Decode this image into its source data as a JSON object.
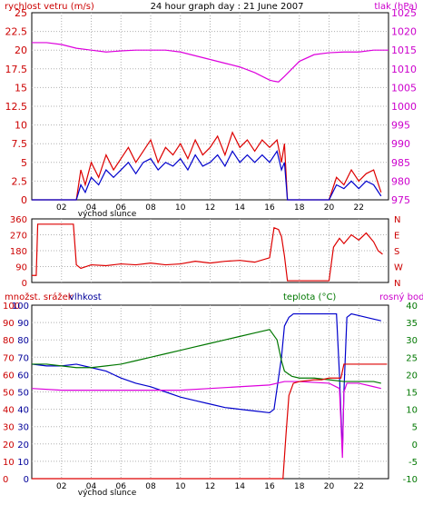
{
  "chart_data": [
    {
      "type": "line",
      "title": "24 hour graph day : 21 June 2007",
      "ylabel_left": "rychlost vetru (m/s)",
      "ylabel_right": "tlak (hPa)",
      "xlabel": "východ slunce",
      "x_ticks": [
        "02",
        "04",
        "06",
        "08",
        "10",
        "12",
        "14",
        "16",
        "18",
        "20",
        "22"
      ],
      "y_left_ticks": [
        "0",
        "2.5",
        "5",
        "7.5",
        "10",
        "12.5",
        "15",
        "17.5",
        "20",
        "22.5",
        "25"
      ],
      "y_right_ticks": [
        "975",
        "980",
        "985",
        "990",
        "995",
        "1000",
        "1005",
        "1010",
        "1015",
        "1020",
        "1025"
      ],
      "xlim": [
        0,
        24
      ],
      "ylim_left": [
        0,
        25
      ],
      "ylim_right": [
        975,
        1025
      ],
      "series": [
        {
          "name": "tlak (hPa)",
          "axis": "right",
          "color": "#dd00dd",
          "x": [
            0,
            1,
            2,
            3,
            4,
            5,
            6,
            7,
            8,
            9,
            10,
            11,
            12,
            13,
            14,
            15,
            15.5,
            16,
            16.3,
            16.6,
            17,
            17.5,
            18,
            19,
            20,
            21,
            22,
            23,
            24
          ],
          "y": [
            1017,
            1017,
            1016.5,
            1015.5,
            1015,
            1014.5,
            1014.8,
            1015,
            1015,
            1015,
            1014.5,
            1013.5,
            1012.5,
            1011.5,
            1010.5,
            1009,
            1008,
            1007,
            1006.7,
            1006.5,
            1008,
            1010,
            1012,
            1013.8,
            1014.3,
            1014.5,
            1014.5,
            1015,
            1015
          ]
        },
        {
          "name": "",
          "axis": "left",
          "color": "#dd0000",
          "x": [
            0,
            2.5,
            3,
            3.3,
            3.6,
            4,
            4.5,
            5,
            5.5,
            6,
            6.5,
            7,
            7.5,
            8,
            8.5,
            9,
            9.5,
            10,
            10.5,
            11,
            11.5,
            12,
            12.5,
            13,
            13.5,
            14,
            14.5,
            15,
            15.5,
            16,
            16.5,
            16.8,
            17,
            17.2,
            20,
            20.5,
            21,
            21.5,
            22,
            22.5,
            23,
            23.5
          ],
          "y": [
            0,
            0,
            0,
            4,
            2,
            5,
            3,
            6,
            4,
            5.5,
            7,
            5,
            6.5,
            8,
            5,
            7,
            6,
            7.5,
            5.5,
            8,
            6,
            7,
            8.5,
            6,
            9,
            7,
            8,
            6.5,
            8,
            7,
            8,
            5,
            7.5,
            0,
            0,
            3,
            2,
            4,
            2.5,
            3.5,
            4,
            1
          ]
        },
        {
          "name": "",
          "axis": "left",
          "color": "#0000cc",
          "x": [
            0,
            2.5,
            3,
            3.3,
            3.6,
            4,
            4.5,
            5,
            5.5,
            6,
            6.5,
            7,
            7.5,
            8,
            8.5,
            9,
            9.5,
            10,
            10.5,
            11,
            11.5,
            12,
            12.5,
            13,
            13.5,
            14,
            14.5,
            15,
            15.5,
            16,
            16.5,
            16.8,
            17,
            17.2,
            20,
            20.5,
            21,
            21.5,
            22,
            22.5,
            23,
            23.5
          ],
          "y": [
            0,
            0,
            0,
            2,
            1,
            3,
            2,
            4,
            3,
            4,
            5,
            3.5,
            5,
            5.5,
            4,
            5,
            4.5,
            5.5,
            4,
            6,
            4.5,
            5,
            6,
            4.5,
            6.5,
            5,
            6,
            5,
            6,
            5,
            6.5,
            4,
            5,
            0,
            0,
            2,
            1.5,
            2.5,
            1.5,
            2.5,
            2,
            0.5
          ]
        }
      ]
    },
    {
      "type": "scatter",
      "y_left_ticks": [
        "0",
        "90",
        "180",
        "270",
        "360"
      ],
      "y_right_ticks": [
        "N",
        "W",
        "S",
        "E",
        "N"
      ],
      "xlim": [
        0,
        24
      ],
      "ylim": [
        0,
        360
      ],
      "series": [
        {
          "name": "",
          "color": "#dd0000",
          "x": [
            0,
            0.3,
            0.4,
            2.8,
            3,
            3.3,
            4,
            5,
            6,
            7,
            8,
            9,
            10,
            11,
            12,
            13,
            14,
            15,
            16,
            16.3,
            16.6,
            16.8,
            17,
            17.2,
            20,
            20.3,
            20.7,
            21,
            21.5,
            22,
            22.5,
            23,
            23.3,
            23.6
          ],
          "y": [
            40,
            40,
            330,
            330,
            100,
            80,
            100,
            95,
            105,
            100,
            110,
            100,
            105,
            120,
            110,
            120,
            125,
            115,
            140,
            310,
            300,
            260,
            150,
            10,
            10,
            200,
            250,
            220,
            270,
            240,
            280,
            230,
            180,
            160
          ]
        }
      ]
    },
    {
      "type": "line",
      "ylabel_left_1": "množst. srážek",
      "ylabel_left_2": "vlhkost",
      "ylabel_right_1": "teplota (°C)",
      "ylabel_right_2": "rosný bod",
      "xlabel": "východ slunce",
      "x_ticks": [
        "02",
        "04",
        "06",
        "08",
        "10",
        "12",
        "14",
        "16",
        "18",
        "20",
        "22"
      ],
      "y_left_ticks_rain": [
        "0",
        "10",
        "20",
        "30",
        "40",
        "50",
        "60",
        "70",
        "80",
        "90",
        "100"
      ],
      "y_left_ticks_humidity": [
        "0",
        "10",
        "20",
        "30",
        "40",
        "50",
        "60",
        "70",
        "80",
        "90",
        "100"
      ],
      "y_right_ticks": [
        "-10",
        "-5",
        "0",
        "5",
        "10",
        "15",
        "20",
        "25",
        "30",
        "35",
        "40"
      ],
      "xlim": [
        0,
        24
      ],
      "ylim_left": [
        0,
        100
      ],
      "ylim_right": [
        -10,
        40
      ],
      "series": [
        {
          "name": "vlhkost",
          "axis": "left",
          "color": "#0000cc",
          "x": [
            0,
            1,
            2,
            3,
            4,
            5,
            6,
            7,
            8,
            9,
            10,
            11,
            12,
            13,
            14,
            15,
            16,
            16.3,
            16.6,
            16.8,
            17,
            17.3,
            17.6,
            18,
            19,
            20,
            20.5,
            20.7,
            20.9,
            21,
            21.2,
            21.5,
            22,
            23,
            23.5
          ],
          "y": [
            66,
            65,
            65,
            66,
            64,
            62,
            58,
            55,
            53,
            50,
            47,
            45,
            43,
            41,
            40,
            39,
            38,
            40,
            58,
            70,
            88,
            93,
            95,
            95,
            95,
            95,
            95,
            60,
            15,
            50,
            93,
            95,
            94,
            92,
            91
          ]
        },
        {
          "name": "teplota (°C)",
          "axis": "right",
          "color": "#007700",
          "x": [
            0,
            1,
            2,
            3,
            4,
            5,
            6,
            7,
            8,
            9,
            10,
            11,
            12,
            13,
            14,
            15,
            16,
            16.5,
            16.8,
            17,
            17.5,
            18,
            19,
            20,
            21,
            22,
            23,
            23.5
          ],
          "y": [
            23,
            23,
            22.5,
            22,
            22,
            22.5,
            23,
            24,
            25,
            26,
            27,
            28,
            29,
            30,
            31,
            32,
            33,
            30,
            24,
            21,
            19.5,
            19,
            19,
            18.5,
            18,
            18,
            18,
            17.5
          ]
        },
        {
          "name": "rosný bod",
          "axis": "right",
          "color": "#dd00dd",
          "x": [
            0,
            2,
            4,
            6,
            8,
            10,
            12,
            14,
            16,
            16.5,
            17,
            18,
            20,
            20.7,
            20.9,
            21,
            21.2,
            22,
            23,
            23.5
          ],
          "y": [
            16,
            15.5,
            15.5,
            15.5,
            15.5,
            15.5,
            16,
            16.5,
            17,
            17.5,
            18,
            18,
            17.5,
            16,
            -4,
            15,
            17.5,
            17.5,
            16.5,
            16
          ]
        },
        {
          "name": "množst. srážek",
          "axis": "left",
          "color": "#dd0000",
          "x": [
            0,
            16.9,
            17.1,
            17.3,
            17.6,
            18,
            19,
            19.5,
            20,
            20.8,
            21,
            23.9
          ],
          "y": [
            0,
            0,
            25,
            48,
            55,
            56,
            57,
            57,
            58,
            58,
            66,
            66
          ]
        }
      ]
    }
  ]
}
